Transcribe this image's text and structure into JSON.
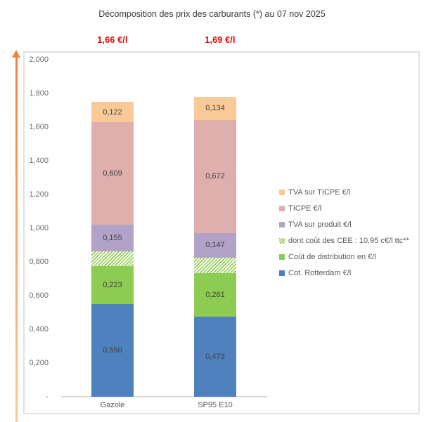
{
  "colors": {
    "price_red": "#ec0000",
    "arrow_orange_dark": "#f0853b",
    "arrow_orange_light": "#f9c79b",
    "axis_gray": "#d9d9d9",
    "tick_text_gray": "#6a6a6a",
    "segment_label_dark": "#404040"
  },
  "chart_data": {
    "type": "bar",
    "subtype": "stacked-column",
    "title": "Décomposition des prix des carburants (*) au 07 nov 2025",
    "categories": [
      "Gazole",
      "SP95 E10"
    ],
    "bar_total_labels": [
      "1,66 €/l",
      "1,69 €/l"
    ],
    "ylim": [
      0,
      2.0
    ],
    "yticks": [
      "2,000",
      "1,800",
      "1,600",
      "1,400",
      "1,200",
      "1,000",
      "0,800",
      "0,600",
      "0,400",
      "0,200",
      "-"
    ],
    "ytick_values": [
      2.0,
      1.8,
      1.6,
      1.4,
      1.2,
      1.0,
      0.8,
      0.6,
      0.4,
      0.2,
      0
    ],
    "grid": false,
    "legend_position": "right-middle",
    "series": [
      {
        "name": "Cot. Rotterdam €/l",
        "color": "#4e81bd",
        "pattern": "solid",
        "values": [
          0.55,
          0.473
        ],
        "labels": [
          "0,550",
          "0,473"
        ]
      },
      {
        "name": "Coût de distribution en €/l",
        "color": "#8ecb52",
        "pattern": "solid",
        "values": [
          0.223,
          0.261
        ],
        "labels": [
          "0,223",
          "0,261"
        ]
      },
      {
        "name": "dont coût des CEE : 10,95 c€/l ttc**",
        "color": "#92cc52",
        "pattern": "hatch",
        "values": [
          0.091,
          0.091
        ],
        "labels": [
          "",
          ""
        ]
      },
      {
        "name": "TVA sur produit €/l",
        "color": "#b3a2c7",
        "pattern": "solid",
        "values": [
          0.155,
          0.147
        ],
        "labels": [
          "0,155",
          "0,147"
        ]
      },
      {
        "name": "TICPE €/l",
        "color": "#dfafad",
        "pattern": "solid",
        "values": [
          0.609,
          0.672
        ],
        "labels": [
          "0,609",
          "0,672"
        ]
      },
      {
        "name": "TVA sur TICPE €/l",
        "color": "#fac998",
        "pattern": "solid",
        "values": [
          0.122,
          0.134
        ],
        "labels": [
          "0,122",
          "0,134"
        ]
      }
    ]
  }
}
